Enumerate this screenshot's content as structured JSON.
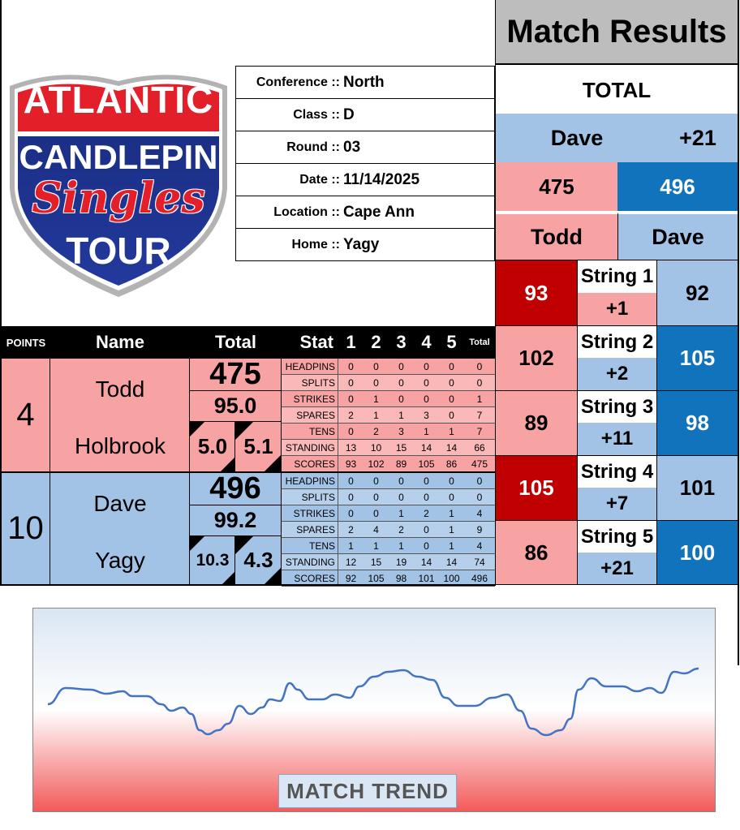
{
  "logo": {
    "line1": "ATLANTIC",
    "line2": "CANDLEPIN",
    "line3": "Singles",
    "line4": "TOUR"
  },
  "info": [
    {
      "label": "Conference ::",
      "value": "North"
    },
    {
      "label": "Class ::",
      "value": "D"
    },
    {
      "label": "Round ::",
      "value": "03"
    },
    {
      "label": "Date ::",
      "value": "11/14/2025"
    },
    {
      "label": "Location ::",
      "value": "Cape Ann"
    },
    {
      "label": "Home ::",
      "value": "Yagy"
    }
  ],
  "results": {
    "title": "Match Results",
    "total_label": "TOTAL",
    "leader_name": "Dave",
    "leader_margin": "+21",
    "total_left": "475",
    "total_right": "496",
    "name_left": "Todd",
    "name_right": "Dave",
    "strings": [
      {
        "label": "String 1",
        "left": "93",
        "right": "92",
        "diff": "+1"
      },
      {
        "label": "String 2",
        "left": "102",
        "right": "105",
        "diff": "+2"
      },
      {
        "label": "String 3",
        "left": "89",
        "right": "98",
        "diff": "+11"
      },
      {
        "label": "String 4",
        "left": "105",
        "right": "101",
        "diff": "+7"
      },
      {
        "label": "String 5",
        "left": "86",
        "right": "100",
        "diff": "+21"
      }
    ]
  },
  "table_header": {
    "points": "POINTS",
    "name": "Name",
    "total": "Total",
    "stat": "Stat",
    "c1": "1",
    "c2": "2",
    "c3": "3",
    "c4": "4",
    "c5": "5",
    "ctotal": "Total"
  },
  "players": [
    {
      "points": "4",
      "first": "Todd",
      "last": "Holbrook",
      "total": "475",
      "average": "95.0",
      "left_stat": "5.0",
      "right_stat": "5.1",
      "stats": [
        {
          "name": "HEADPINS",
          "v": [
            "0",
            "0",
            "0",
            "0",
            "0"
          ],
          "t": "0"
        },
        {
          "name": "SPLITS",
          "v": [
            "0",
            "0",
            "0",
            "0",
            "0"
          ],
          "t": "0"
        },
        {
          "name": "STRIKES",
          "v": [
            "0",
            "1",
            "0",
            "0",
            "0"
          ],
          "t": "1"
        },
        {
          "name": "SPARES",
          "v": [
            "2",
            "1",
            "1",
            "3",
            "0"
          ],
          "t": "7"
        },
        {
          "name": "TENS",
          "v": [
            "0",
            "2",
            "3",
            "1",
            "1"
          ],
          "t": "7"
        },
        {
          "name": "STANDING",
          "v": [
            "13",
            "10",
            "15",
            "14",
            "14"
          ],
          "t": "66"
        },
        {
          "name": "SCORES",
          "v": [
            "93",
            "102",
            "89",
            "105",
            "86"
          ],
          "t": "475"
        }
      ]
    },
    {
      "points": "10",
      "first": "Dave",
      "last": "Yagy",
      "total": "496",
      "average": "99.2",
      "left_stat": "10.3",
      "right_stat": "4.3",
      "stats": [
        {
          "name": "HEADPINS",
          "v": [
            "0",
            "0",
            "0",
            "0",
            "0"
          ],
          "t": "0"
        },
        {
          "name": "SPLITS",
          "v": [
            "0",
            "0",
            "0",
            "0",
            "0"
          ],
          "t": "0"
        },
        {
          "name": "STRIKES",
          "v": [
            "0",
            "0",
            "1",
            "2",
            "1"
          ],
          "t": "4"
        },
        {
          "name": "SPARES",
          "v": [
            "2",
            "4",
            "2",
            "0",
            "1"
          ],
          "t": "9"
        },
        {
          "name": "TENS",
          "v": [
            "1",
            "1",
            "1",
            "0",
            "1"
          ],
          "t": "4"
        },
        {
          "name": "STANDING",
          "v": [
            "12",
            "15",
            "19",
            "14",
            "14"
          ],
          "t": "74"
        },
        {
          "name": "SCORES",
          "v": [
            "92",
            "105",
            "98",
            "101",
            "100"
          ],
          "t": "496"
        }
      ]
    }
  ],
  "trend": {
    "label": "MATCH TREND",
    "colors": {
      "line": "#4472c4",
      "top": "#dbe6f4",
      "bottom": "#f25a5a"
    }
  },
  "colors": {
    "pink": "#f8a3a3",
    "light_blue": "#a3c3e6",
    "dark_blue": "#1273bd",
    "dark_red": "#c00000"
  }
}
